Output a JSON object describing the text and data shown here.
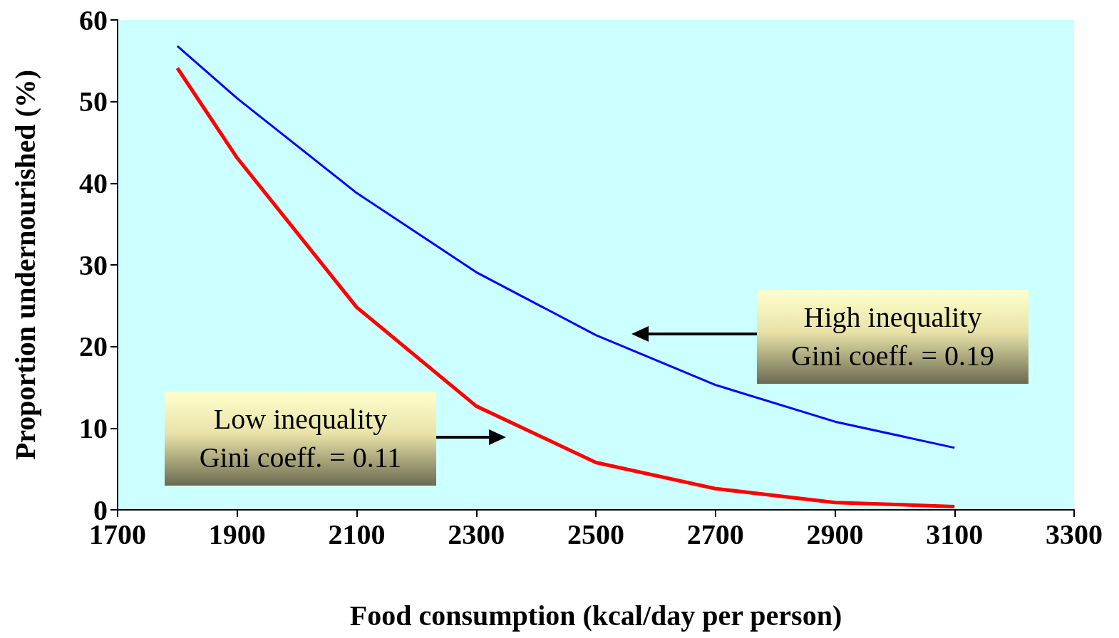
{
  "chart_data": {
    "type": "line",
    "xlabel": "Food consumption (kcal/day per person)",
    "ylabel": "Proportion undernourished (%)",
    "x": [
      1800,
      1900,
      2100,
      2300,
      2500,
      2700,
      2900,
      3100
    ],
    "series": [
      {
        "color": "#0000ff",
        "values": [
          56.8,
          50.4,
          38.8,
          29.1,
          21.4,
          15.3,
          10.8,
          7.6
        ]
      },
      {
        "color": "#ff0000",
        "values": [
          54.1,
          43.1,
          24.8,
          12.7,
          5.8,
          2.6,
          0.9,
          0.4
        ]
      }
    ],
    "xlim": [
      1700,
      3300
    ],
    "xticks": [
      1700,
      1900,
      2100,
      2300,
      2500,
      2700,
      2900,
      3100,
      3300
    ],
    "ylim": [
      0,
      60
    ],
    "yticks": [
      0,
      10,
      20,
      30,
      40,
      50,
      60
    ],
    "marker": "none",
    "line_style": "solid",
    "annotations": [
      "High inequality\nGini coeff. = 0.19",
      "Low inequality\nGini coeff. = 0.11"
    ]
  }
}
